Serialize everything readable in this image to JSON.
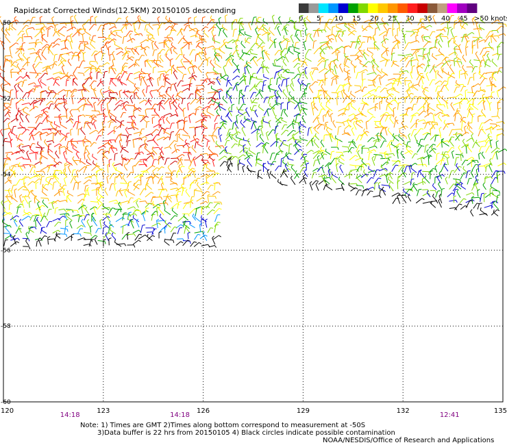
{
  "title": "Rapidscat Corrected Winds(12.5KM) 20150105 descending",
  "colorbar": {
    "labels": [
      "0",
      "5",
      "10",
      "15",
      "20",
      "25",
      "30",
      "35",
      "40",
      "45",
      ">50 knots"
    ],
    "colors": [
      "#3a3a3a",
      "#9a9a9a",
      "#00e5ff",
      "#0096ff",
      "#0000d0",
      "#00a000",
      "#7fd800",
      "#ffff00",
      "#ffc800",
      "#ff9600",
      "#ff5a00",
      "#ff1e1e",
      "#c80000",
      "#8a5a3a",
      "#c0a080",
      "#ff00ff",
      "#a000c0",
      "#600080"
    ]
  },
  "chart_data": {
    "type": "scatter",
    "title": "Rapidscat Corrected Winds(12.5KM) 20150105 descending",
    "x_ticks": [
      "120",
      "123",
      "126",
      "129",
      "132",
      "135"
    ],
    "y_ticks": [
      "-50",
      "-52",
      "-54",
      "-56",
      "-58",
      "-60"
    ],
    "xlim": [
      120,
      135
    ],
    "ylim": [
      -60,
      -50
    ],
    "grid": true,
    "swath_times": [
      {
        "label": "14:18",
        "lon": 122
      },
      {
        "label": "14:18",
        "lon": 125.3
      },
      {
        "label": "12:41",
        "lon": 133.4
      }
    ]
  },
  "notes": {
    "line1": "Note: 1) Times are GMT 2)Times along bottom correspond to measurement at -50S",
    "line2": "3)Data buffer is 22 hrs from 20150105 4) Black circles indicate possible contamination",
    "line3": "NOAA/NESDIS/Office of Research and Applications"
  }
}
